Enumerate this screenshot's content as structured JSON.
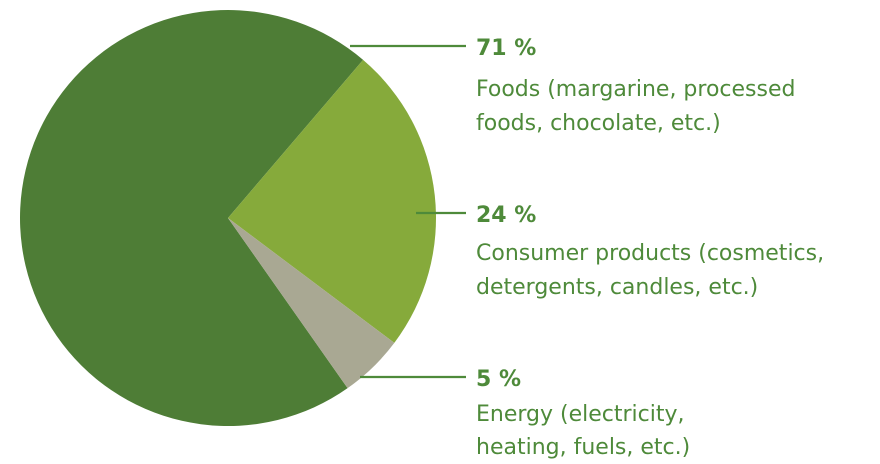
{
  "chart_data": {
    "type": "pie",
    "slices": [
      {
        "label": "Foods (margarine, processed foods, chocolate, etc.)",
        "value": 71,
        "value_text": "71 %",
        "desc_lines": [
          "Foods (margarine, processed",
          "foods, chocolate, etc.)"
        ],
        "color": "#4e7d36"
      },
      {
        "label": "Consumer products (cosmetics, detergents, candles, etc.)",
        "value": 24,
        "value_text": "24 %",
        "desc_lines": [
          "Consumer products (cosmetics,",
          "detergents, candles, etc.)"
        ],
        "color": "#86aa3b"
      },
      {
        "label": "Energy (electricity, heating, fuels, etc.)",
        "value": 5,
        "value_text": "5 %",
        "desc_lines": [
          "Energy (electricity,",
          "heating, fuels, etc.)"
        ],
        "color": "#a9a893"
      }
    ],
    "title": "",
    "legend": "right",
    "label_color": "#4e8a3a",
    "leader_color": "#4e8a3a"
  }
}
